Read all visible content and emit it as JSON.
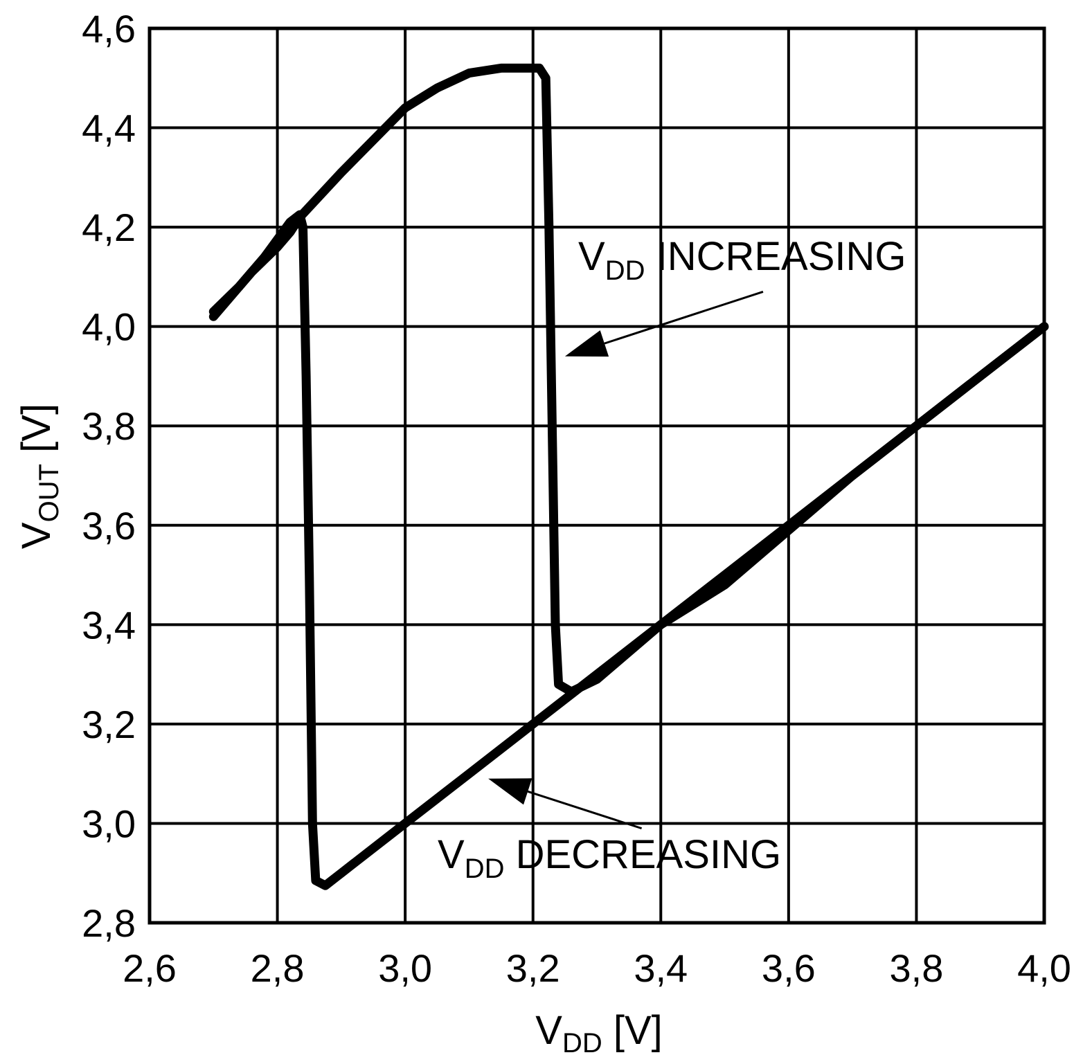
{
  "chart_data": {
    "type": "line",
    "xlabel": {
      "main": "V",
      "sub": "DD",
      "unit": " [V]"
    },
    "ylabel": {
      "main": "V",
      "sub": "OUT",
      "unit": " [V]"
    },
    "xlim": [
      2.6,
      4.0
    ],
    "ylim": [
      2.8,
      4.6
    ],
    "x_ticks": [
      2.6,
      2.8,
      3.0,
      3.2,
      3.4,
      3.6,
      3.8,
      4.0
    ],
    "y_ticks": [
      2.8,
      3.0,
      3.2,
      3.4,
      3.6,
      3.8,
      4.0,
      4.2,
      4.4,
      4.6
    ],
    "x_tick_labels": [
      "2,6",
      "2,8",
      "3,0",
      "3,2",
      "3,4",
      "3,6",
      "3,8",
      "4,0"
    ],
    "y_tick_labels": [
      "2,8",
      "3,0",
      "3,2",
      "3,4",
      "3,6",
      "3,8",
      "4,0",
      "4,2",
      "4,4",
      "4,6"
    ],
    "grid": true,
    "series": [
      {
        "points": [
          [
            2.7,
            4.02
          ],
          [
            2.76,
            4.11
          ],
          [
            2.8,
            4.16
          ],
          [
            2.82,
            4.19
          ],
          [
            2.835,
            4.22
          ],
          [
            2.9,
            4.31
          ],
          [
            3.0,
            4.44
          ],
          [
            3.05,
            4.48
          ],
          [
            3.1,
            4.51
          ],
          [
            3.15,
            4.52
          ],
          [
            3.21,
            4.52
          ],
          [
            3.22,
            4.5
          ],
          [
            3.225,
            4.2
          ],
          [
            3.23,
            3.8
          ],
          [
            3.235,
            3.4
          ],
          [
            3.24,
            3.28
          ],
          [
            3.26,
            3.265
          ],
          [
            3.3,
            3.29
          ],
          [
            3.4,
            3.4
          ],
          [
            3.5,
            3.5
          ],
          [
            3.6,
            3.6
          ],
          [
            3.7,
            3.7
          ],
          [
            3.8,
            3.8
          ],
          [
            3.9,
            3.9
          ],
          [
            4.0,
            4.0
          ]
        ]
      },
      {
        "points": [
          [
            4.0,
            4.0
          ],
          [
            3.9,
            3.9
          ],
          [
            3.8,
            3.8
          ],
          [
            3.7,
            3.7
          ],
          [
            3.6,
            3.59
          ],
          [
            3.5,
            3.48
          ],
          [
            3.4,
            3.4
          ],
          [
            3.3,
            3.3
          ],
          [
            3.2,
            3.2
          ],
          [
            3.1,
            3.1
          ],
          [
            3.0,
            3.0
          ],
          [
            2.9,
            2.9
          ],
          [
            2.875,
            2.875
          ],
          [
            2.86,
            2.885
          ],
          [
            2.855,
            3.0
          ],
          [
            2.85,
            3.5
          ],
          [
            2.845,
            3.9
          ],
          [
            2.84,
            4.2
          ],
          [
            2.835,
            4.225
          ],
          [
            2.82,
            4.21
          ],
          [
            2.78,
            4.14
          ],
          [
            2.74,
            4.08
          ],
          [
            2.7,
            4.03
          ]
        ]
      }
    ],
    "annotations": [
      {
        "main": "V",
        "sub": "DD",
        "rest": " INCREASING",
        "from": [
          3.56,
          4.07
        ],
        "to": [
          3.25,
          3.94
        ]
      },
      {
        "main": "V",
        "sub": "DD",
        "rest": " DECREASING",
        "from": [
          3.37,
          2.99
        ],
        "to": [
          3.13,
          3.09
        ]
      }
    ]
  }
}
